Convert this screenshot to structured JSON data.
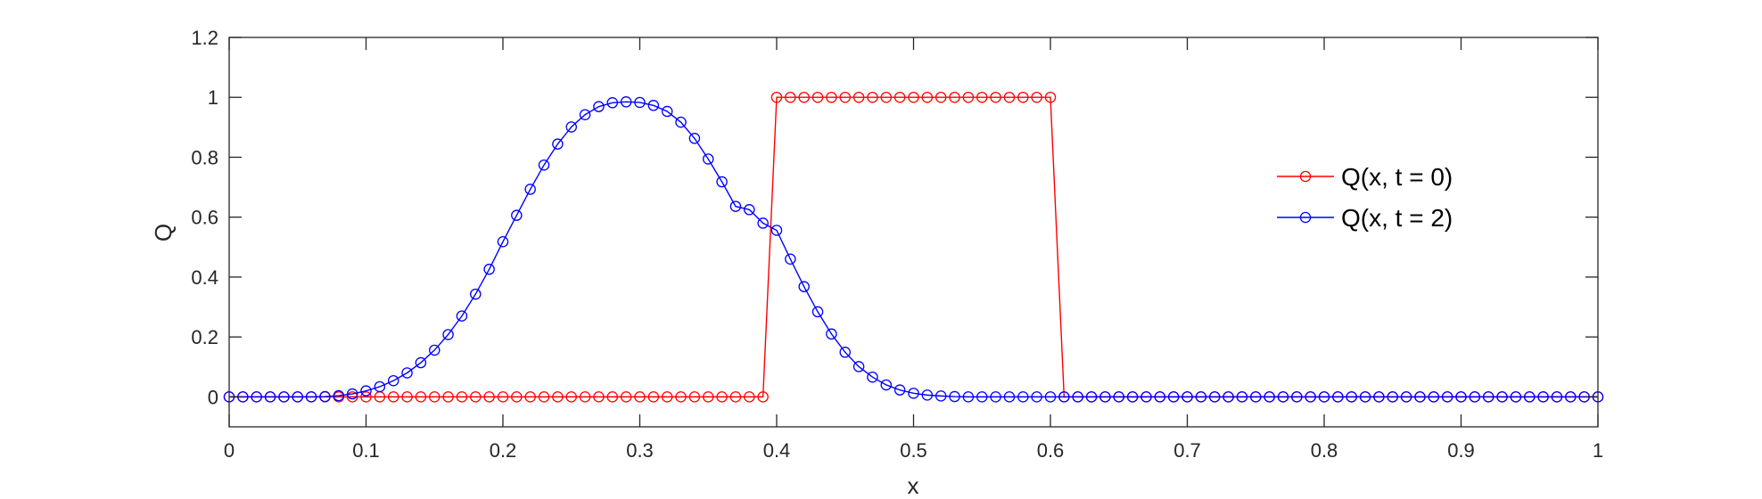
{
  "chart_data": {
    "type": "line",
    "title": "",
    "xlabel": "x",
    "ylabel": "Q",
    "xlim": [
      0,
      1
    ],
    "ylim": [
      -0.1,
      1.2
    ],
    "xticks": [
      0,
      0.1,
      0.2,
      0.3,
      0.4,
      0.5,
      0.6,
      0.7,
      0.8,
      0.9,
      1
    ],
    "yticks": [
      0,
      0.2,
      0.4,
      0.6,
      0.8,
      1,
      1.2
    ],
    "xtick_labels": [
      "0",
      "0.1",
      "0.2",
      "0.3",
      "0.4",
      "0.5",
      "0.6",
      "0.7",
      "0.8",
      "0.9",
      "1"
    ],
    "ytick_labels": [
      "0",
      "0.2",
      "0.4",
      "0.6",
      "0.8",
      "1",
      "1.2"
    ],
    "grid": false,
    "legend_position": "right",
    "marker": "circle",
    "x": [
      0,
      0.01,
      0.02,
      0.03,
      0.04,
      0.05,
      0.06,
      0.07,
      0.08,
      0.09,
      0.1,
      0.11,
      0.12,
      0.13,
      0.14,
      0.15,
      0.16,
      0.17,
      0.18,
      0.19,
      0.2,
      0.21,
      0.22,
      0.23,
      0.24,
      0.25,
      0.26,
      0.27,
      0.28,
      0.29,
      0.3,
      0.31,
      0.32,
      0.33,
      0.34,
      0.35,
      0.36,
      0.37,
      0.38,
      0.39,
      0.4,
      0.41,
      0.42,
      0.43,
      0.44,
      0.45,
      0.46,
      0.47,
      0.48,
      0.49,
      0.5,
      0.51,
      0.52,
      0.53,
      0.54,
      0.55,
      0.56,
      0.57,
      0.58,
      0.59,
      0.6,
      0.61,
      0.62,
      0.63,
      0.64,
      0.65,
      0.66,
      0.67,
      0.68,
      0.69,
      0.7,
      0.71,
      0.72,
      0.73,
      0.74,
      0.75,
      0.76,
      0.77,
      0.78,
      0.79,
      0.8,
      0.81,
      0.82,
      0.83,
      0.84,
      0.85,
      0.86,
      0.87,
      0.88,
      0.89,
      0.9,
      0.91,
      0.92,
      0.93,
      0.94,
      0.95,
      0.96,
      0.97,
      0.98,
      0.99,
      1
    ],
    "series": [
      {
        "name": "Q(x, t = 0)",
        "color": "#ff0000",
        "values": [
          0,
          0,
          0,
          0,
          0,
          0,
          0,
          0,
          0,
          0,
          0,
          0,
          0,
          0,
          0,
          0,
          0,
          0,
          0,
          0,
          0,
          0,
          0,
          0,
          0,
          0,
          0,
          0,
          0,
          0,
          0,
          0,
          0,
          0,
          0,
          0,
          0,
          0,
          0,
          0,
          1,
          1,
          1,
          1,
          1,
          1,
          1,
          1,
          1,
          1,
          1,
          1,
          1,
          1,
          1,
          1,
          1,
          1,
          1,
          1,
          1,
          0,
          0,
          0,
          0,
          0,
          0,
          0,
          0,
          0,
          0,
          0,
          0,
          0,
          0,
          0,
          0,
          0,
          0,
          0,
          0,
          0,
          0,
          0,
          0,
          0,
          0,
          0,
          0,
          0,
          0,
          0,
          0,
          0,
          0,
          0,
          0,
          0,
          0,
          0,
          0
        ]
      },
      {
        "name": "Q(x, t = 2)",
        "color": "#0000ff",
        "values": [
          0,
          0,
          0,
          0,
          0,
          0,
          0,
          0.001,
          0.004,
          0.01,
          0.02,
          0.034,
          0.054,
          0.08,
          0.114,
          0.156,
          0.208,
          0.27,
          0.343,
          0.426,
          0.518,
          0.606,
          0.693,
          0.774,
          0.844,
          0.901,
          0.942,
          0.969,
          0.982,
          0.985,
          0.983,
          0.973,
          0.953,
          0.917,
          0.863,
          0.794,
          0.718,
          0.636,
          0.625,
          0.58,
          0.556,
          0.46,
          0.368,
          0.284,
          0.21,
          0.149,
          0.101,
          0.066,
          0.04,
          0.023,
          0.012,
          0.006,
          0.003,
          0.001,
          0,
          0,
          0,
          0,
          0,
          0,
          0,
          0,
          0,
          0,
          0,
          0,
          0,
          0,
          0,
          0,
          0,
          0,
          0,
          0,
          0,
          0,
          0,
          0,
          0,
          0,
          0,
          0,
          0,
          0,
          0,
          0,
          0,
          0,
          0,
          0,
          0,
          0,
          0,
          0,
          0,
          0,
          0,
          0,
          0,
          0,
          0
        ]
      }
    ]
  }
}
